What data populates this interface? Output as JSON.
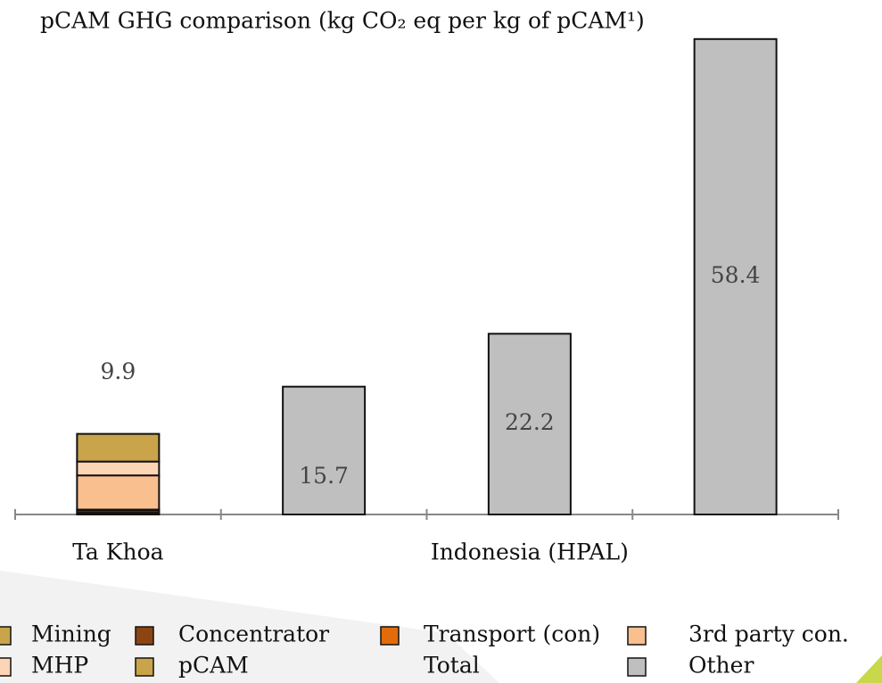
{
  "chart_data": {
    "type": "stacked_bar",
    "title": "pCAM GHG comparison (kg CO₂ eq per kg of pCAM¹)",
    "categories": [
      "Ta Khoa",
      null,
      "Indonesia (HPAL)",
      null
    ],
    "series": [
      {
        "name": "Mining",
        "color": "#c9a44a",
        "values": [
          0.2,
          null,
          null,
          null
        ]
      },
      {
        "name": "Concentrator",
        "color": "#8b4513",
        "values": [
          0.3,
          null,
          null,
          null
        ]
      },
      {
        "name": "Transport (con)",
        "color": "#e36c0a",
        "values": [
          0.1,
          null,
          null,
          null
        ]
      },
      {
        "name": "3rd party con.",
        "color": "#f9bf8f",
        "values": [
          4.2,
          null,
          null,
          null
        ]
      },
      {
        "name": "MHP",
        "color": "#fcd5b5",
        "values": [
          1.7,
          null,
          null,
          null
        ]
      },
      {
        "name": "pCAM",
        "color": "#c9a44a",
        "values": [
          3.4,
          null,
          null,
          null
        ]
      },
      {
        "name": "Total",
        "values": [
          9.9,
          null,
          null,
          null
        ]
      },
      {
        "name": "Other",
        "color": "#bfbfbf",
        "values": [
          null,
          15.7,
          22.2,
          58.4
        ]
      }
    ]
  }
}
